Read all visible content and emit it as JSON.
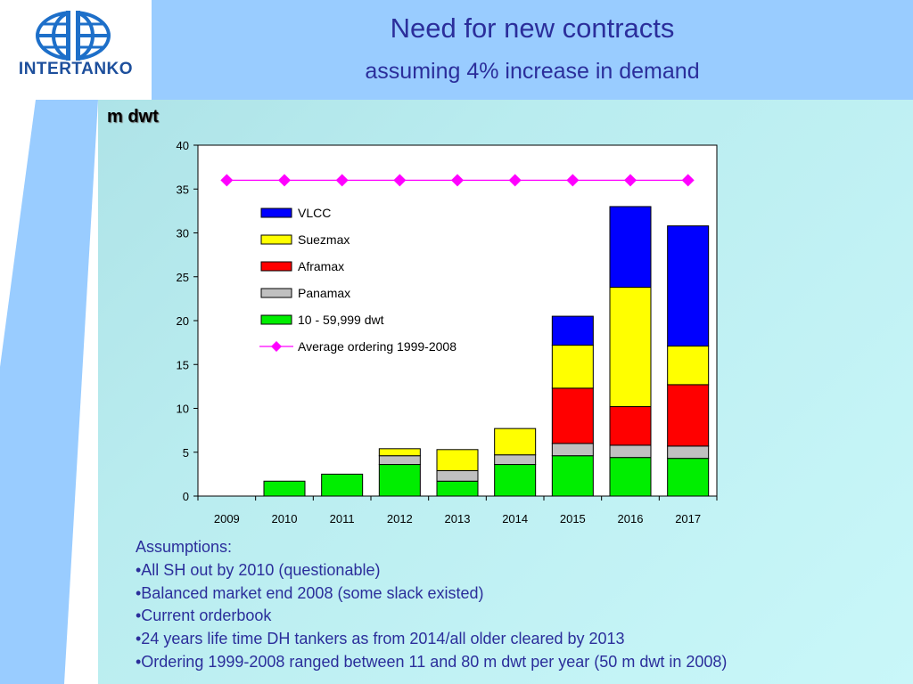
{
  "logo": {
    "text": "INTERTANKO"
  },
  "slide": {
    "title": "Need for new contracts",
    "subtitle": "assuming 4% increase in demand"
  },
  "chart_data": {
    "type": "bar",
    "stacked": true,
    "unit_label": "m dwt",
    "categories": [
      "2009",
      "2010",
      "2011",
      "2012",
      "2013",
      "2014",
      "2015",
      "2016",
      "2017"
    ],
    "ylim": [
      0,
      40
    ],
    "yticks": [
      0,
      5,
      10,
      15,
      20,
      25,
      30,
      35,
      40
    ],
    "grid": false,
    "legend_position": "top-center",
    "series": [
      {
        "name": "10 - 59,999 dwt",
        "color": "#00ee00",
        "values": [
          0,
          1.7,
          2.5,
          3.6,
          1.7,
          3.6,
          4.6,
          4.4,
          4.3
        ]
      },
      {
        "name": "Panamax",
        "color": "#c0c0c0",
        "values": [
          0,
          0,
          0,
          1.0,
          1.2,
          1.1,
          1.4,
          1.4,
          1.4
        ]
      },
      {
        "name": "Aframax",
        "color": "#ff0000",
        "values": [
          0,
          0,
          0,
          0,
          0,
          0,
          6.3,
          4.4,
          7.0
        ]
      },
      {
        "name": "Suezmax",
        "color": "#ffff00",
        "values": [
          0,
          0,
          0,
          0.8,
          2.4,
          3.0,
          4.9,
          13.6,
          4.4
        ]
      },
      {
        "name": "VLCC",
        "color": "#0000ff",
        "values": [
          0,
          0,
          0,
          0,
          0,
          0,
          3.3,
          9.2,
          13.7
        ]
      }
    ],
    "line_series": {
      "name": "Average ordering 1999-2008",
      "color": "#ff00ff",
      "values": [
        36,
        36,
        36,
        36,
        36,
        36,
        36,
        36,
        36
      ]
    },
    "legend_order": [
      "VLCC",
      "Suezmax",
      "Aframax",
      "Panamax",
      "10 - 59,999 dwt",
      "Average ordering 1999-2008"
    ]
  },
  "assumptions": {
    "heading": "Assumptions:",
    "items": [
      "•All SH out by 2010 (questionable)",
      "•Balanced market end 2008 (some slack existed)",
      "•Current orderbook",
      "•24 years life time DH tankers as from 2014/all older cleared by 2013",
      "•Ordering 1999-2008 ranged between 11 and 80 m dwt per year (50 m dwt in 2008)"
    ]
  }
}
